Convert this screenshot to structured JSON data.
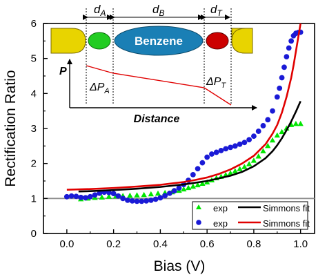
{
  "colors": {
    "axis": "#000000",
    "green": "#00e600",
    "blue": "#1a1ad6",
    "black_fit": "#000000",
    "red_fit": "#e00000",
    "baseline": "#8c8c8c",
    "electrode_gold": "#e8d400",
    "anchor_green": "#22cc22",
    "benzene_blue": "#1a7fb5",
    "anchor_red": "#cc0000",
    "profile_line": "#e00000"
  },
  "chart_data": {
    "type": "scatter",
    "xlabel": "Bias (V)",
    "ylabel": "Rectification Ratio",
    "xlim": [
      -0.1,
      1.06
    ],
    "ylim": [
      0,
      6
    ],
    "xticks": [
      "0.0",
      "0.2",
      "0.4",
      "0.6",
      "0.8",
      "1.0"
    ],
    "yticks": [
      "0",
      "1",
      "2",
      "3",
      "4",
      "5",
      "6"
    ],
    "grid": false,
    "legend_placement": "bottom-right",
    "reference_line_y": 1,
    "series": [
      {
        "name": "exp",
        "kind": "scatter",
        "marker": "triangle",
        "color": "green",
        "x": [
          0.06,
          0.09,
          0.12,
          0.15,
          0.18,
          0.21,
          0.24,
          0.27,
          0.3,
          0.33,
          0.36,
          0.39,
          0.42,
          0.45,
          0.48,
          0.5,
          0.52,
          0.54,
          0.56,
          0.58,
          0.6,
          0.62,
          0.64,
          0.66,
          0.68,
          0.7,
          0.72,
          0.74,
          0.76,
          0.78,
          0.8,
          0.82,
          0.84,
          0.86,
          0.88,
          0.9,
          0.92,
          0.94,
          0.96,
          0.98,
          1.0
        ],
        "y": [
          0.98,
          1.0,
          1.02,
          1.03,
          1.05,
          1.06,
          1.07,
          1.08,
          1.09,
          1.1,
          1.12,
          1.14,
          1.16,
          1.18,
          1.22,
          1.26,
          1.3,
          1.34,
          1.38,
          1.42,
          1.46,
          1.52,
          1.58,
          1.62,
          1.67,
          1.72,
          1.78,
          1.84,
          1.9,
          1.98,
          2.08,
          2.2,
          2.35,
          2.5,
          2.66,
          2.8,
          2.9,
          3.0,
          3.1,
          3.13,
          3.13
        ]
      },
      {
        "name": "exp",
        "kind": "scatter",
        "marker": "circle",
        "color": "blue",
        "x": [
          0.0,
          0.02,
          0.04,
          0.06,
          0.08,
          0.1,
          0.12,
          0.14,
          0.16,
          0.18,
          0.2,
          0.22,
          0.24,
          0.26,
          0.28,
          0.3,
          0.32,
          0.34,
          0.36,
          0.38,
          0.4,
          0.42,
          0.44,
          0.46,
          0.48,
          0.5,
          0.52,
          0.54,
          0.56,
          0.58,
          0.6,
          0.62,
          0.64,
          0.66,
          0.68,
          0.7,
          0.72,
          0.74,
          0.76,
          0.78,
          0.8,
          0.82,
          0.84,
          0.86,
          0.88,
          0.9,
          0.91,
          0.92,
          0.93,
          0.94,
          0.95,
          0.96,
          0.97,
          0.98,
          0.99,
          1.0
        ],
        "y": [
          1.05,
          1.07,
          1.06,
          1.03,
          1.02,
          1.05,
          1.1,
          1.15,
          1.18,
          1.17,
          1.14,
          1.07,
          1.0,
          0.95,
          0.93,
          0.92,
          0.92,
          0.93,
          0.95,
          0.98,
          1.02,
          1.08,
          1.15,
          1.22,
          1.3,
          1.4,
          1.52,
          1.68,
          1.85,
          2.02,
          2.18,
          2.27,
          2.32,
          2.37,
          2.42,
          2.46,
          2.5,
          2.55,
          2.6,
          2.68,
          2.78,
          2.92,
          3.08,
          3.25,
          3.5,
          3.9,
          4.15,
          4.45,
          4.75,
          5.05,
          5.3,
          5.5,
          5.65,
          5.72,
          5.74,
          5.75
        ]
      },
      {
        "name": "Simmons fit",
        "kind": "line",
        "color": "black_fit",
        "x": [
          0.05,
          0.1,
          0.2,
          0.3,
          0.4,
          0.5,
          0.6,
          0.7,
          0.75,
          0.8,
          0.85,
          0.88,
          0.9,
          0.92,
          0.94,
          0.96,
          0.98,
          1.0
        ],
        "y": [
          1.2,
          1.21,
          1.24,
          1.28,
          1.33,
          1.4,
          1.5,
          1.65,
          1.76,
          1.92,
          2.15,
          2.35,
          2.52,
          2.72,
          2.95,
          3.2,
          3.48,
          3.78
        ]
      },
      {
        "name": "Simmons fit",
        "kind": "line",
        "color": "red_fit",
        "x": [
          0.0,
          0.1,
          0.2,
          0.3,
          0.4,
          0.5,
          0.55,
          0.6,
          0.65,
          0.7,
          0.75,
          0.8,
          0.85,
          0.88,
          0.9,
          0.92,
          0.94,
          0.96,
          0.97,
          0.98,
          0.99,
          1.0
        ],
        "y": [
          1.25,
          1.27,
          1.3,
          1.34,
          1.39,
          1.47,
          1.53,
          1.6,
          1.7,
          1.83,
          2.0,
          2.22,
          2.55,
          2.85,
          3.1,
          3.45,
          3.9,
          4.45,
          4.8,
          5.2,
          5.6,
          6.0
        ]
      }
    ],
    "legend": [
      {
        "marker": "triangle",
        "color": "green",
        "label": "exp",
        "fit_color": "black_fit",
        "fit_label": "Simmons fit"
      },
      {
        "marker": "circle",
        "color": "blue",
        "label": "exp",
        "fit_color": "red_fit",
        "fit_label": "Simmons fit"
      }
    ],
    "inset": {
      "labels": {
        "d_A": {
          "main": "d",
          "sub": "A"
        },
        "d_B": {
          "main": "d",
          "sub": "B"
        },
        "d_T": {
          "main": "d",
          "sub": "T"
        },
        "P": "P",
        "dP_A": {
          "main": "ΔP",
          "sub": "A"
        },
        "dP_T": {
          "main": "ΔP",
          "sub": "T"
        },
        "distance": "Distance"
      },
      "molecule_label": "Benzene"
    }
  }
}
